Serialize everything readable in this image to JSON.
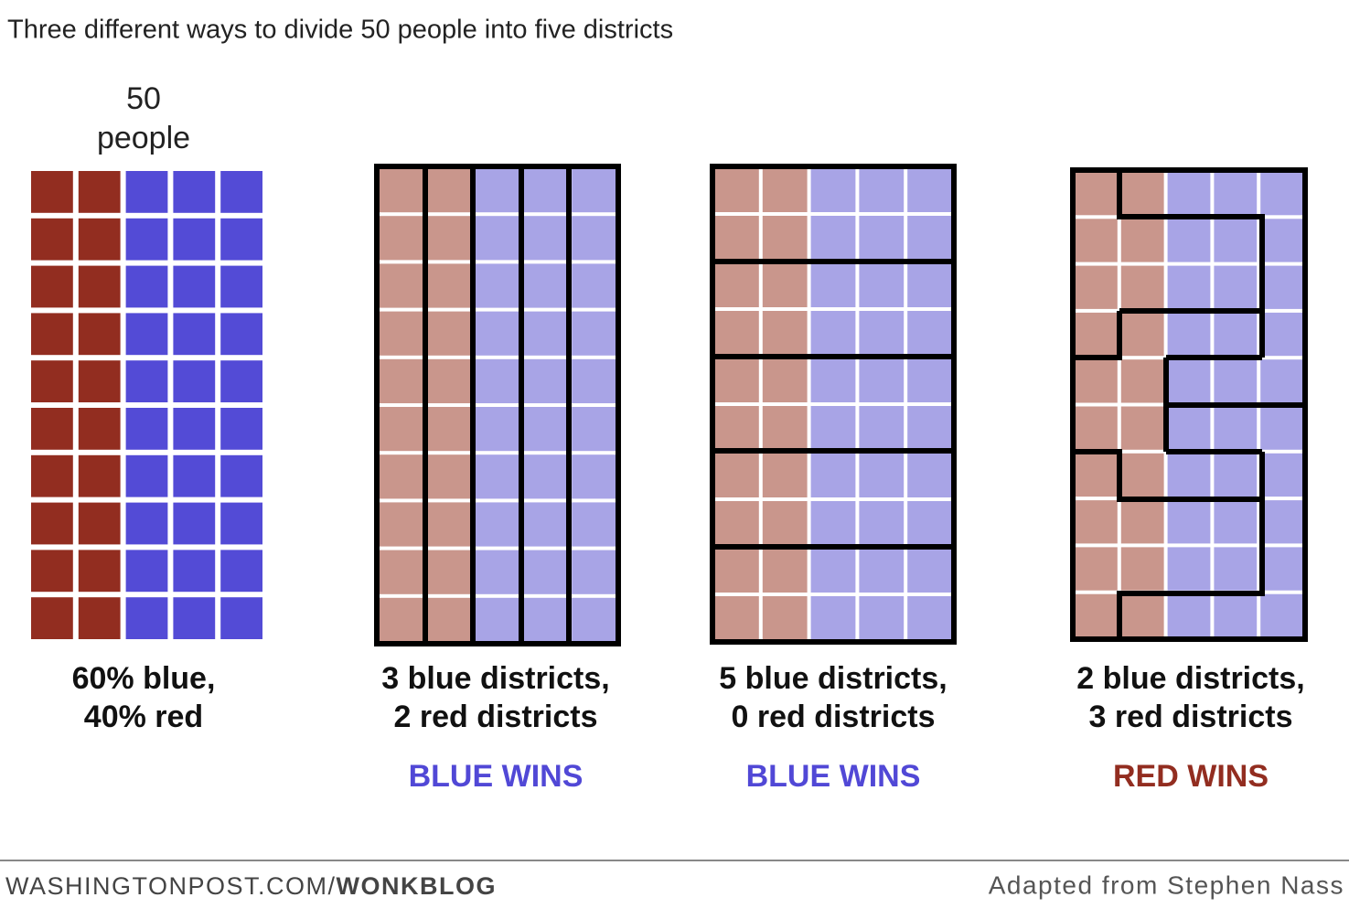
{
  "title": "Three different ways to divide 50 people into five districts",
  "panels": [
    {
      "header": [
        "50",
        "people"
      ],
      "caption": [
        "60% blue,",
        "40% red"
      ]
    },
    {
      "caption": [
        "3 blue districts,",
        "2 red districts"
      ],
      "verdict": "BLUE WINS"
    },
    {
      "caption": [
        "5 blue districts,",
        "0 red districts"
      ],
      "verdict": "BLUE WINS"
    },
    {
      "caption": [
        "2 blue districts,",
        "3 red districts"
      ],
      "verdict": "RED WINS"
    }
  ],
  "footer": {
    "site": "WASHINGTONPOST.COM/",
    "brand": "WONKBLOG",
    "credit": "Adapted from Stephen Nass"
  }
}
